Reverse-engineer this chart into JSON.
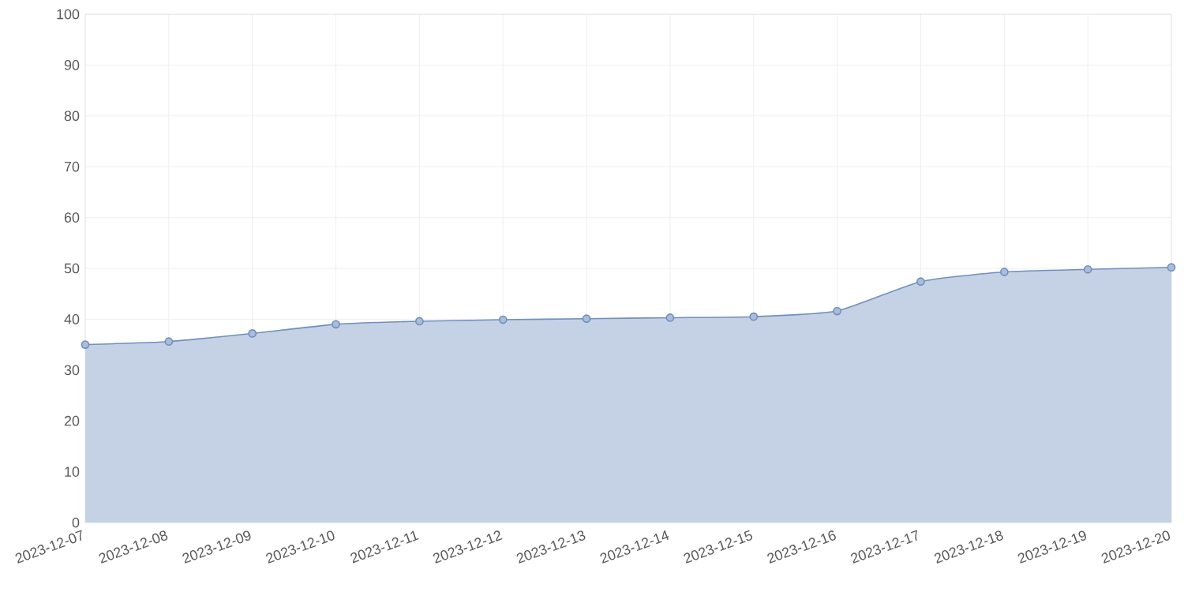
{
  "chart_data": {
    "type": "area",
    "categories": [
      "2023-12-07",
      "2023-12-08",
      "2023-12-09",
      "2023-12-10",
      "2023-12-11",
      "2023-12-12",
      "2023-12-13",
      "2023-12-14",
      "2023-12-15",
      "2023-12-16",
      "2023-12-17",
      "2023-12-18",
      "2023-12-19",
      "2023-12-20"
    ],
    "series": [
      {
        "color": "#6f8fbf",
        "values": [
          35.0,
          35.6,
          37.2,
          39.0,
          39.6,
          39.9,
          40.1,
          40.3,
          40.5,
          41.6,
          47.4,
          49.3,
          49.8,
          50.2
        ]
      }
    ],
    "ylim": [
      0,
      100
    ],
    "yticks": [
      0,
      10,
      20,
      30,
      40,
      50,
      60,
      70,
      80,
      90,
      100
    ],
    "grid": true,
    "marker": "circle"
  }
}
